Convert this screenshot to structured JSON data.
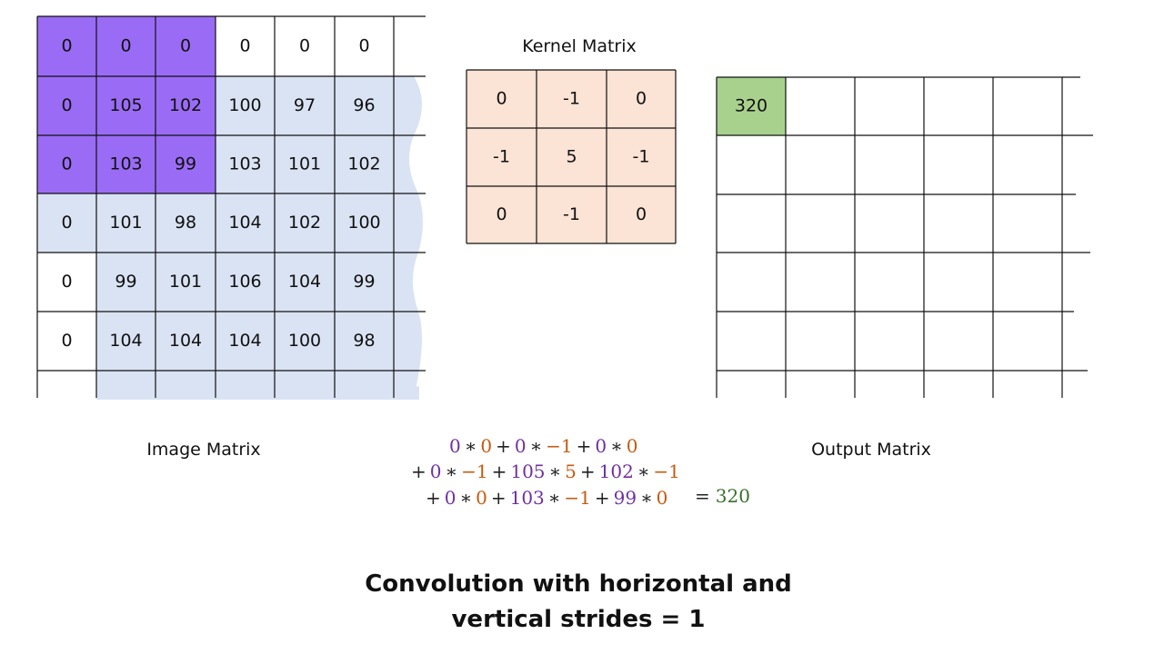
{
  "image_matrix": {
    "label": "Image Matrix",
    "rows": [
      [
        "0",
        "0",
        "0",
        "0",
        "0",
        "0"
      ],
      [
        "0",
        "105",
        "102",
        "100",
        "97",
        "96"
      ],
      [
        "0",
        "103",
        "99",
        "103",
        "101",
        "102"
      ],
      [
        "0",
        "101",
        "98",
        "104",
        "102",
        "100"
      ],
      [
        "0",
        "99",
        "101",
        "106",
        "104",
        "99"
      ],
      [
        "0",
        "104",
        "104",
        "104",
        "100",
        "98"
      ]
    ]
  },
  "kernel_matrix": {
    "label": "Kernel Matrix",
    "rows": [
      [
        "0",
        "-1",
        "0"
      ],
      [
        "-1",
        "5",
        "-1"
      ],
      [
        "0",
        "-1",
        "0"
      ]
    ]
  },
  "output_matrix": {
    "label": "Output Matrix",
    "first_value": "320"
  },
  "formula": {
    "times": "∗",
    "plus": "+",
    "equals": "=",
    "result": "320",
    "lines": [
      [
        [
          "0",
          "0"
        ],
        [
          "0",
          "−1"
        ],
        [
          "0",
          "0"
        ]
      ],
      [
        [
          "0",
          "−1"
        ],
        [
          "105",
          "5"
        ],
        [
          "102",
          "−1"
        ]
      ],
      [
        [
          "0",
          "0"
        ],
        [
          "103",
          "−1"
        ],
        [
          "99",
          "0"
        ]
      ]
    ]
  },
  "title": {
    "line1": "Convolution with horizontal and",
    "line2": "vertical strides = 1"
  }
}
